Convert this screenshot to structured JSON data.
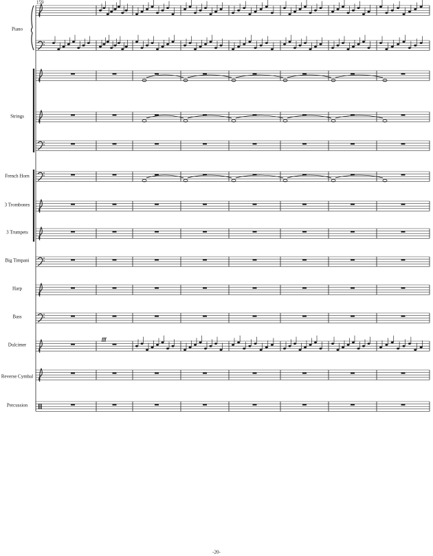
{
  "header": {
    "measure_number": "159",
    "page_number": "-20-"
  },
  "instruments": [
    {
      "label": "Piano"
    },
    {
      "label": "Strings"
    },
    {
      "label": "French Horn"
    },
    {
      "label": "3 Trombones"
    },
    {
      "label": "3 Trumpets"
    },
    {
      "label": "Big Timpani"
    },
    {
      "label": "Harp"
    },
    {
      "label": "Bass"
    },
    {
      "label": "Dulcimer"
    },
    {
      "label": "Reverse Cymbal"
    },
    {
      "label": "Percussion"
    }
  ],
  "dynamics": {
    "dulcimer": "fff"
  }
}
